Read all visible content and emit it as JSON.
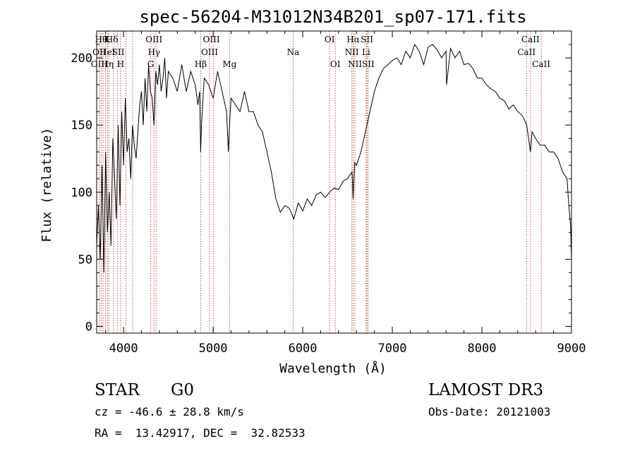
{
  "chart_data": {
    "type": "line",
    "title": "spec-56204-M31012N34B201_sp07-171.fits",
    "xlabel": "Wavelength (Å)",
    "ylabel": "Flux (relative)",
    "xlim": [
      3700,
      9000
    ],
    "ylim": [
      -5,
      220
    ],
    "x_ticks": [
      4000,
      5000,
      6000,
      7000,
      8000,
      9000
    ],
    "y_ticks": [
      0,
      50,
      100,
      150,
      200
    ],
    "grid": false,
    "series": [
      {
        "color": "#000000",
        "x": [
          3700,
          3720,
          3740,
          3760,
          3780,
          3800,
          3820,
          3840,
          3860,
          3880,
          3900,
          3920,
          3940,
          3960,
          3980,
          4000,
          4020,
          4040,
          4060,
          4080,
          4100,
          4120,
          4140,
          4160,
          4180,
          4200,
          4220,
          4240,
          4260,
          4280,
          4300,
          4320,
          4340,
          4360,
          4380,
          4400,
          4420,
          4440,
          4460,
          4480,
          4500,
          4550,
          4600,
          4650,
          4700,
          4750,
          4800,
          4830,
          4850,
          4861,
          4870,
          4900,
          4950,
          5000,
          5050,
          5100,
          5150,
          5170,
          5183,
          5200,
          5250,
          5300,
          5350,
          5400,
          5450,
          5500,
          5550,
          5600,
          5650,
          5700,
          5750,
          5800,
          5850,
          5900,
          5950,
          6000,
          6050,
          6100,
          6150,
          6200,
          6250,
          6300,
          6350,
          6400,
          6450,
          6500,
          6550,
          6563,
          6580,
          6600,
          6650,
          6700,
          6750,
          6800,
          6850,
          6900,
          6950,
          7000,
          7050,
          7100,
          7150,
          7200,
          7250,
          7300,
          7350,
          7400,
          7450,
          7500,
          7550,
          7600,
          7605,
          7650,
          7700,
          7750,
          7800,
          7850,
          7900,
          7950,
          8000,
          8050,
          8100,
          8150,
          8200,
          8250,
          8300,
          8350,
          8400,
          8450,
          8500,
          8542,
          8560,
          8600,
          8650,
          8700,
          8750,
          8800,
          8850,
          8900,
          8950,
          8970,
          8990,
          9000
        ],
        "y": [
          60,
          90,
          50,
          120,
          40,
          130,
          70,
          100,
          60,
          140,
          110,
          80,
          150,
          90,
          160,
          120,
          170,
          130,
          140,
          110,
          150,
          135,
          125,
          145,
          165,
          175,
          150,
          185,
          160,
          195,
          175,
          170,
          150,
          190,
          180,
          195,
          175,
          185,
          200,
          170,
          190,
          185,
          175,
          195,
          175,
          190,
          180,
          165,
          175,
          130,
          150,
          185,
          180,
          170,
          190,
          175,
          160,
          130,
          150,
          170,
          165,
          160,
          175,
          160,
          160,
          150,
          145,
          130,
          115,
          95,
          85,
          90,
          88,
          80,
          92,
          86,
          95,
          90,
          98,
          100,
          96,
          100,
          103,
          102,
          108,
          110,
          115,
          95,
          122,
          120,
          130,
          145,
          160,
          175,
          185,
          192,
          195,
          198,
          200,
          195,
          205,
          200,
          210,
          205,
          195,
          208,
          210,
          206,
          200,
          205,
          180,
          207,
          200,
          205,
          195,
          196,
          192,
          185,
          185,
          180,
          177,
          175,
          170,
          168,
          162,
          165,
          160,
          157,
          150,
          130,
          145,
          140,
          135,
          135,
          130,
          130,
          125,
          115,
          110,
          90,
          75,
          50
        ]
      }
    ],
    "annotations": [
      {
        "x": 3750,
        "label": "Hθ",
        "row": 1
      },
      {
        "x": 3815,
        "label": "K",
        "row": 1
      },
      {
        "x": 3870,
        "label": "Hδ",
        "row": 1
      },
      {
        "x": 4340,
        "label": "OIII",
        "row": 1
      },
      {
        "x": 4980,
        "label": "OIII",
        "row": 1
      },
      {
        "x": 6300,
        "label": "OI",
        "row": 1
      },
      {
        "x": 6563,
        "label": "Hα",
        "row": 1
      },
      {
        "x": 6717,
        "label": "SII",
        "row": 1
      },
      {
        "x": 8542,
        "label": "CaII",
        "row": 1
      },
      {
        "x": 3730,
        "label": "OII",
        "row": 2
      },
      {
        "x": 3820,
        "label": "HeI",
        "row": 2
      },
      {
        "x": 3940,
        "label": "SII",
        "row": 2
      },
      {
        "x": 4340,
        "label": "Hγ",
        "row": 2
      },
      {
        "x": 4960,
        "label": "OIII",
        "row": 2
      },
      {
        "x": 5893,
        "label": "Na",
        "row": 2
      },
      {
        "x": 6548,
        "label": "NII",
        "row": 2
      },
      {
        "x": 6708,
        "label": "Li",
        "row": 2
      },
      {
        "x": 8498,
        "label": "CaII",
        "row": 2
      },
      {
        "x": 3730,
        "label": "OIII",
        "row": 3
      },
      {
        "x": 3820,
        "label": "Hη",
        "row": 3
      },
      {
        "x": 3968,
        "label": "H",
        "row": 3
      },
      {
        "x": 4304,
        "label": "G",
        "row": 3
      },
      {
        "x": 4861,
        "label": "Hβ",
        "row": 3
      },
      {
        "x": 5183,
        "label": "Mg",
        "row": 3
      },
      {
        "x": 6363,
        "label": "OI",
        "row": 3
      },
      {
        "x": 6583,
        "label": "NII",
        "row": 3
      },
      {
        "x": 6731,
        "label": "SII",
        "row": 3
      },
      {
        "x": 8662,
        "label": "CaII",
        "row": 3
      }
    ],
    "line_marker_x": [
      3730,
      3750,
      3771,
      3798,
      3820,
      3835,
      3889,
      3934,
      3968,
      4026,
      4102,
      4304,
      4340,
      4363,
      4861,
      4959,
      5007,
      5183,
      5893,
      6300,
      6363,
      6548,
      6563,
      6583,
      6708,
      6717,
      6731,
      8498,
      8542,
      8662
    ]
  },
  "info": {
    "object_class": "STAR",
    "subclass": "G0",
    "survey": "LAMOST DR3",
    "velocity": "cz = -46.6 ± 28.8 km/s",
    "obs_date": "Obs-Date: 20121003",
    "coords": "RA =  13.42917, DEC =  32.82533"
  }
}
